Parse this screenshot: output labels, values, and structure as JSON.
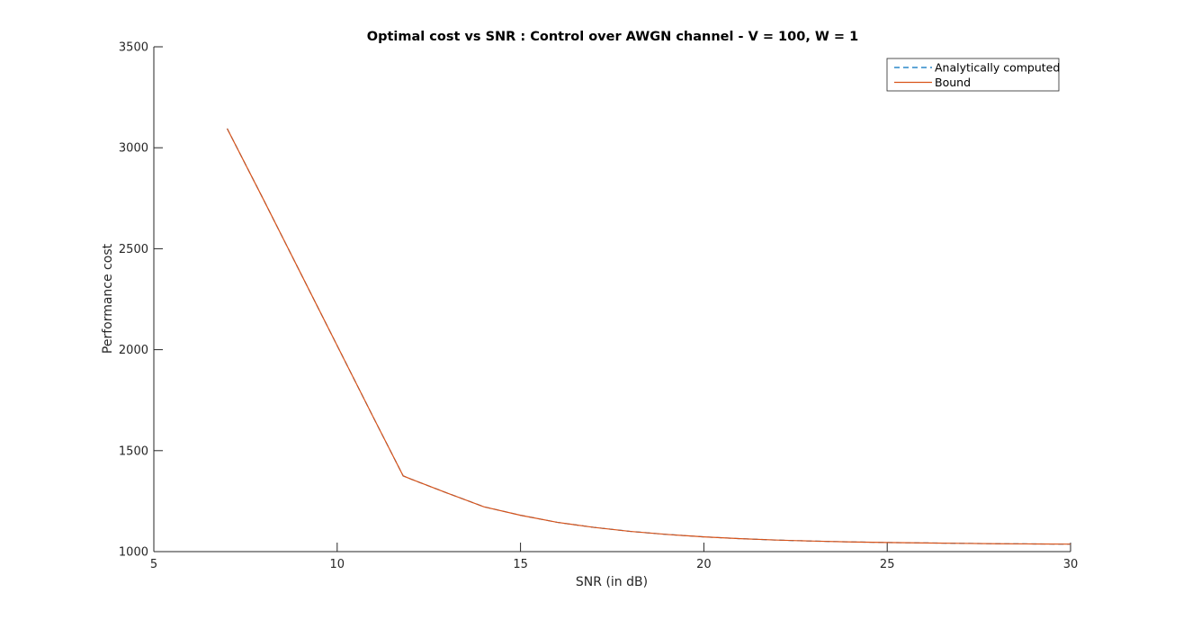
{
  "chart_data": {
    "type": "line",
    "title": "Optimal cost vs SNR : Control over AWGN channel - V = 100, W = 1",
    "xlabel": "SNR (in dB)",
    "ylabel": "Performance cost",
    "xlim": [
      5,
      30
    ],
    "ylim": [
      1000,
      3500
    ],
    "xticks": [
      5,
      10,
      15,
      20,
      25,
      30
    ],
    "yticks": [
      1000,
      1500,
      2000,
      2500,
      3000,
      3500
    ],
    "grid": false,
    "legend_position": "top-right",
    "series": [
      {
        "name": "Analytically computed",
        "style": "dashed",
        "color": "#0072BD",
        "x": [
          7,
          8,
          9,
          10,
          11,
          11.8,
          12,
          13,
          14,
          15,
          16,
          17,
          18,
          19,
          20,
          21,
          22,
          23,
          24,
          25,
          26,
          27,
          28,
          29,
          30
        ],
        "y": [
          3095,
          2740,
          2380,
          2020,
          1660,
          1375,
          1360,
          1290,
          1222,
          1180,
          1145,
          1120,
          1100,
          1085,
          1073,
          1064,
          1057,
          1052,
          1048,
          1045,
          1043,
          1041,
          1039,
          1038,
          1037
        ]
      },
      {
        "name": "Bound",
        "style": "solid",
        "color": "#D95319",
        "x": [
          7,
          8,
          9,
          10,
          11,
          11.8,
          12,
          13,
          14,
          15,
          16,
          17,
          18,
          19,
          20,
          21,
          22,
          23,
          24,
          25,
          26,
          27,
          28,
          29,
          30
        ],
        "y": [
          3095,
          2740,
          2380,
          2020,
          1660,
          1375,
          1360,
          1290,
          1222,
          1180,
          1145,
          1120,
          1100,
          1085,
          1073,
          1064,
          1057,
          1052,
          1048,
          1045,
          1043,
          1041,
          1039,
          1038,
          1037
        ]
      }
    ]
  }
}
